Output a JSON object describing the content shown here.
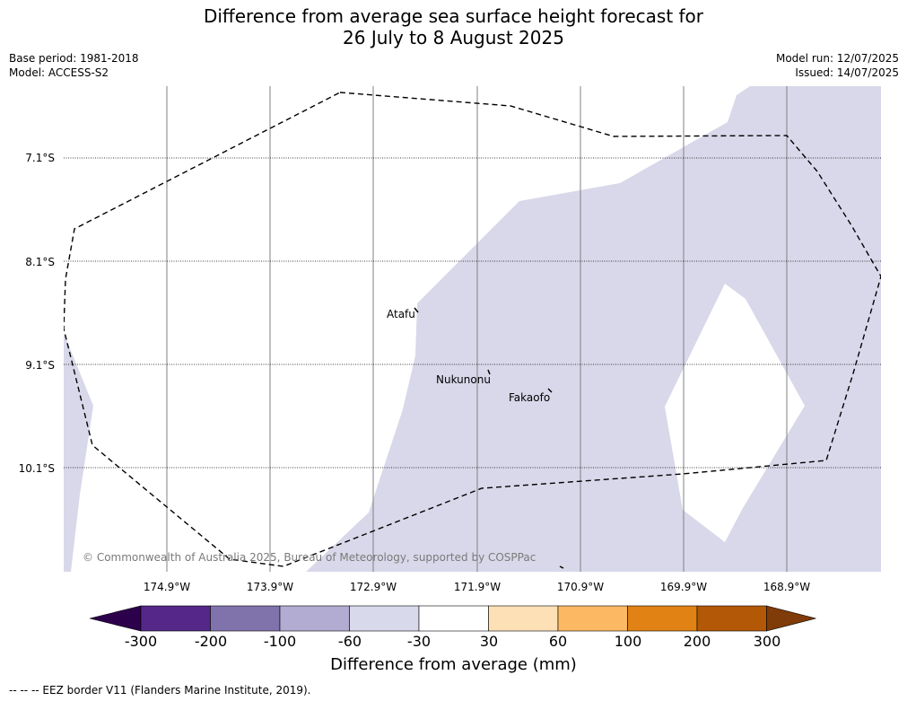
{
  "title": {
    "line1": "Difference from average sea surface height forecast for",
    "line2": "26 July to 8 August 2025"
  },
  "meta": {
    "base_period": "Base period: 1981-2018",
    "model": "Model: ACCESS-S2",
    "model_run": "Model run: 12/07/2025",
    "issued": "Issued: 14/07/2025"
  },
  "map": {
    "latitude_labels": [
      "7.1°S",
      "8.1°S",
      "9.1°S",
      "10.1°S"
    ],
    "longitude_labels": [
      "174.9°W",
      "173.9°W",
      "172.9°W",
      "171.9°W",
      "170.9°W",
      "169.9°W",
      "168.9°W"
    ],
    "islands": [
      {
        "name": "Atafu"
      },
      {
        "name": "Nukunonu"
      },
      {
        "name": "Fakaofo"
      }
    ],
    "copyright": "© Commonwealth of Australia 2025, Bureau of Meteorology, supported by COSPPac",
    "anomaly_color": "#d8d8ea",
    "eez_line_color": "#000000"
  },
  "colorbar": {
    "title": "Difference from average (mm)",
    "ticks": [
      "-300",
      "-200",
      "-100",
      "-60",
      "-30",
      "30",
      "60",
      "100",
      "200",
      "300"
    ],
    "colors": [
      "#2d004b",
      "#542788",
      "#8073ac",
      "#b2abd2",
      "#d8daeb",
      "#ffffff",
      "#fee0b6",
      "#fdb863",
      "#e08214",
      "#b35806",
      "#7f3b08"
    ]
  },
  "footer": "--  --  -- EEZ border V11 (Flanders Marine Institute, 2019)."
}
